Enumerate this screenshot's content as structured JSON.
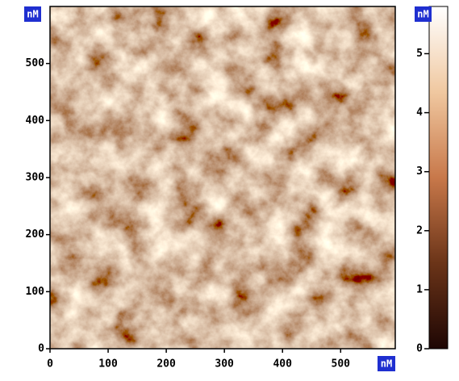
{
  "chart_data": {
    "type": "image",
    "xlim": [
      0,
      594
    ],
    "ylim": [
      0,
      600
    ],
    "xticks": [
      0,
      100,
      200,
      300,
      400,
      500
    ],
    "yticks": [
      0,
      100,
      200,
      300,
      400,
      500
    ],
    "x_unit": "nM",
    "y_unit": "nM",
    "colorbar": {
      "lim": [
        0,
        5.8
      ],
      "ticks": [
        0,
        1,
        2,
        3,
        4,
        5
      ],
      "unit": "nM",
      "colors": [
        "#1e0604",
        "#6b3418",
        "#c8784a",
        "#f0c8a0",
        "#ffffff"
      ]
    }
  }
}
